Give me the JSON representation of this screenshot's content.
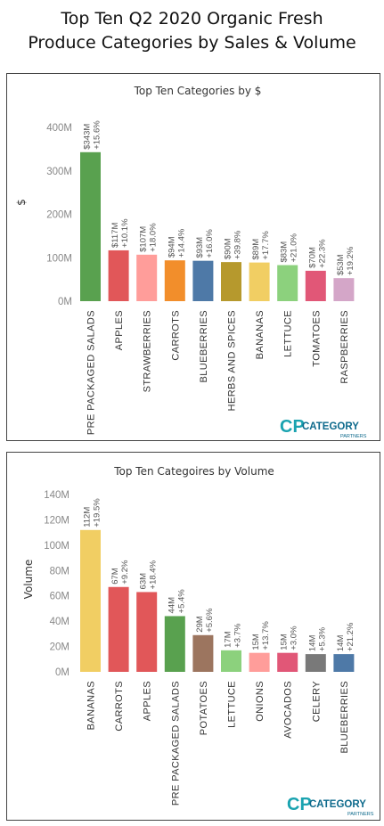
{
  "page": {
    "title_line1": "Top Ten Q2 2020 Organic Fresh",
    "title_line2": "Produce  Categories by Sales & Volume"
  },
  "logo": {
    "mark": "CP",
    "name": "CATEGORY",
    "sub": "PARTNERS",
    "colors": {
      "mark": "#1aa3b0",
      "text": "#0e6a8c"
    }
  },
  "chart_data": [
    {
      "type": "bar",
      "title": "Top  Ten Categories by $",
      "ylabel": "$",
      "ylim": [
        0,
        400
      ],
      "yticks": [
        "0M",
        "100M",
        "200M",
        "300M",
        "400M"
      ],
      "categories": [
        "PRE PACKAGED SALADS",
        "APPLES",
        "STRAWBERRIES",
        "CARROTS",
        "BLUEBERRIES",
        "HERBS AND SPICES",
        "BANANAS",
        "LETTUCE",
        "TOMATOES",
        "RASPBERRIES"
      ],
      "values": [
        343,
        117,
        107,
        94,
        93,
        90,
        89,
        83,
        70,
        53
      ],
      "value_labels": [
        "$343M",
        "$117M",
        "$107M",
        "$94M",
        "$93M",
        "$90M",
        "$89M",
        "$83M",
        "$70M",
        "$53M"
      ],
      "change_labels": [
        "+15.6%",
        "+10.1%",
        "+18.0%",
        "+14.4%",
        "+16.0%",
        "+39.8%",
        "+17.7%",
        "+21.0%",
        "+22.3%",
        "+19.2%"
      ],
      "colors": [
        "#59a14f",
        "#e15759",
        "#ff9d9a",
        "#f28e2b",
        "#4e79a7",
        "#b6992d",
        "#f1ce63",
        "#8cd17d",
        "#e15777",
        "#d4a6c8"
      ]
    },
    {
      "type": "bar",
      "title": "Top Ten Categoires by Volume",
      "ylabel": "Volume",
      "ylim": [
        0,
        140
      ],
      "yticks": [
        "0M",
        "20M",
        "40M",
        "60M",
        "80M",
        "100M",
        "120M",
        "140M"
      ],
      "categories": [
        "BANANAS",
        "CARROTS",
        "APPLES",
        "PRE PACKAGED SALADS",
        "POTATOES",
        "LETTUCE",
        "ONIONS",
        "AVOCADOS",
        "CELERY",
        "BLUEBERRIES"
      ],
      "values": [
        112,
        67,
        63,
        44,
        29,
        17,
        15,
        15,
        14,
        14
      ],
      "value_labels": [
        "112M",
        "67M",
        "63M",
        "44M",
        "29M",
        "17M",
        "15M",
        "15M",
        "14M",
        "14M"
      ],
      "change_labels": [
        "+19.5%",
        "+9.2%",
        "+18.4%",
        "+5.4%",
        "+5.6%",
        "+3.7%",
        "+13.7%",
        "+3.0%",
        "+5.3%",
        "+21.2%"
      ],
      "colors": [
        "#f1ce63",
        "#e15759",
        "#e15759",
        "#59a14f",
        "#9c755f",
        "#8cd17d",
        "#ff9d9a",
        "#e15777",
        "#797979",
        "#4e79a7"
      ]
    }
  ]
}
